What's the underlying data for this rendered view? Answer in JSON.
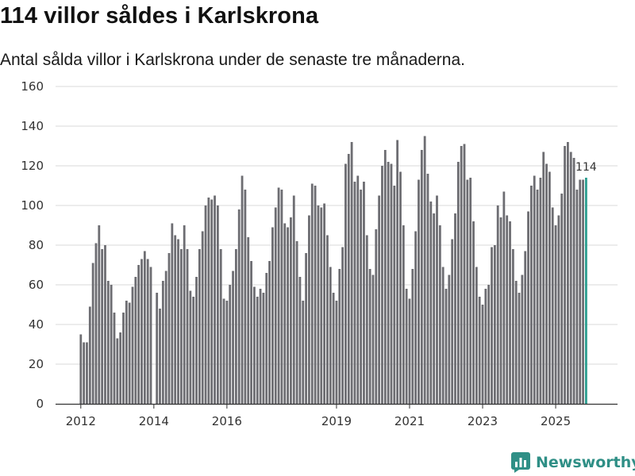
{
  "title": "114 villor såldes i Karlskrona",
  "subtitle": "Antal sålda villor i Karlskrona under de senaste tre månaderna.",
  "brand": {
    "name": "Newsworthy",
    "icon": "newsworthy-chart-logo-icon"
  },
  "colors": {
    "bar": "#6d6d72",
    "highlight": "#2a9d8f",
    "grid": "#d9d9d9",
    "axis": "#333333",
    "brand": "#2f8f86"
  },
  "chart_data": {
    "type": "bar",
    "title": "114 villor såldes i Karlskrona",
    "xlabel": "",
    "ylabel": "",
    "ylim": [
      0,
      160
    ],
    "yticks": [
      "0",
      "20",
      "40",
      "60",
      "80",
      "100",
      "120",
      "140",
      "160"
    ],
    "xticks": [
      {
        "label": "2012",
        "index": 0
      },
      {
        "label": "2014",
        "index": 24
      },
      {
        "label": "2016",
        "index": 48
      },
      {
        "label": "2019",
        "index": 84
      },
      {
        "label": "2021",
        "index": 108
      },
      {
        "label": "2023",
        "index": 132
      },
      {
        "label": "2025",
        "index": 156
      }
    ],
    "start": "2012-01",
    "frequency": "monthly, rolling three-month total",
    "values": [
      35,
      31,
      31,
      49,
      71,
      81,
      90,
      78,
      80,
      62,
      60,
      46,
      33,
      36,
      46,
      52,
      51,
      59,
      64,
      70,
      73,
      77,
      73,
      69,
      0,
      56,
      48,
      62,
      67,
      76,
      91,
      85,
      83,
      78,
      90,
      78,
      57,
      54,
      64,
      78,
      87,
      100,
      104,
      103,
      105,
      100,
      78,
      53,
      52,
      60,
      67,
      78,
      98,
      115,
      108,
      84,
      72,
      59,
      54,
      58,
      56,
      66,
      72,
      89,
      99,
      109,
      108,
      91,
      89,
      94,
      105,
      82,
      64,
      52,
      76,
      95,
      111,
      110,
      100,
      99,
      101,
      85,
      69,
      56,
      52,
      68,
      79,
      121,
      126,
      132,
      112,
      115,
      108,
      112,
      85,
      68,
      65,
      88,
      105,
      120,
      128,
      122,
      121,
      110,
      133,
      117,
      90,
      58,
      53,
      68,
      87,
      113,
      128,
      135,
      116,
      102,
      96,
      105,
      90,
      69,
      58,
      65,
      83,
      96,
      122,
      130,
      131,
      113,
      114,
      92,
      69,
      54,
      50,
      58,
      60,
      79,
      80,
      100,
      94,
      107,
      95,
      92,
      78,
      62,
      56,
      65,
      77,
      97,
      110,
      115,
      108,
      114,
      127,
      121,
      117,
      99,
      90,
      95,
      106,
      130,
      132,
      127,
      124,
      108,
      113,
      113,
      114
    ],
    "highlight_index": 166,
    "highlight_label": "114"
  }
}
